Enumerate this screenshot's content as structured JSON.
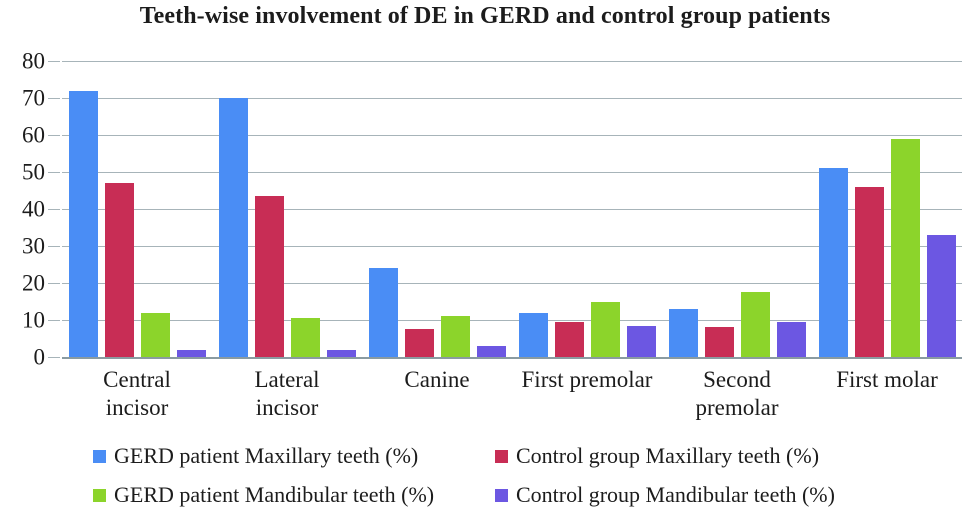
{
  "chart_data": {
    "type": "bar",
    "title": "Teeth-wise involvement of DE in GERD and control group patients",
    "categories": [
      "Central incisor",
      "Lateral incisor",
      "Canine",
      "First premolar",
      "Second premolar",
      "First molar"
    ],
    "category_lines": [
      [
        "Central",
        "incisor"
      ],
      [
        "Lateral",
        "incisor"
      ],
      [
        "Canine"
      ],
      [
        "First premolar"
      ],
      [
        "Second",
        "premolar"
      ],
      [
        "First molar"
      ]
    ],
    "series": [
      {
        "name": "GERD patient Maxillary teeth (%)",
        "color": "#4a8df5",
        "values": [
          72,
          70,
          24,
          12,
          13,
          51
        ]
      },
      {
        "name": "Control group Maxillary teeth (%)",
        "color": "#c82d55",
        "values": [
          47,
          43.5,
          7.5,
          9.5,
          8,
          46
        ]
      },
      {
        "name": "GERD patient Mandibular teeth (%)",
        "color": "#8cd42b",
        "values": [
          12,
          10.5,
          11,
          15,
          17.5,
          59
        ]
      },
      {
        "name": "Control group Mandibular teeth (%)",
        "color": "#6c57e2",
        "values": [
          2,
          2,
          3,
          8.5,
          9.5,
          33
        ]
      }
    ],
    "xlabel": "",
    "ylabel": "",
    "ylim": [
      0,
      80
    ],
    "ytick_step": 10,
    "ytick_labels": [
      "0",
      "10",
      "20",
      "30",
      "40",
      "50",
      "60",
      "70",
      "80"
    ],
    "grid": true,
    "legend_position": "bottom",
    "style": {
      "gridline_color": "#a7b4b9",
      "axis_line_color": "#8a9ba1",
      "text_color": "#1c1c1c",
      "background": "#ffffff"
    }
  }
}
